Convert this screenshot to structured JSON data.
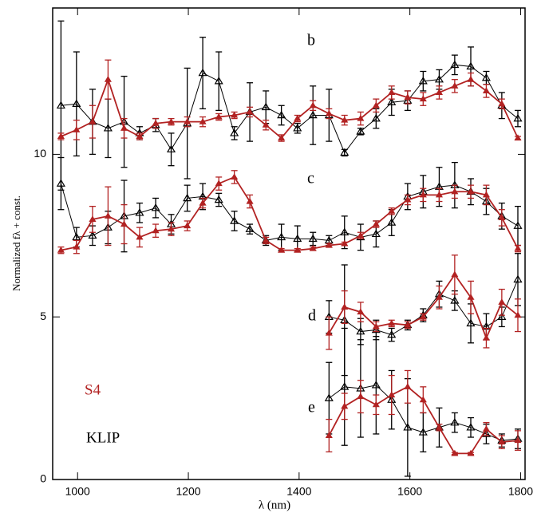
{
  "chart_data": {
    "type": "errorbar-line",
    "xlabel": "λ (nm)",
    "ylabel": "Normalized fλ + const.",
    "xlim": [
      955,
      1808
    ],
    "ylim": [
      0,
      14.5
    ],
    "xticks": [
      1000,
      1200,
      1400,
      1600,
      1800
    ],
    "yticks": [
      0,
      5,
      10
    ],
    "legend": [
      {
        "label": "S4",
        "color": "#b22222"
      },
      {
        "label": "KLIP",
        "color": "#000000"
      }
    ],
    "groups": [
      {
        "label": "b",
        "x": [
          970,
          998,
          1027,
          1055,
          1084,
          1112,
          1141,
          1169,
          1198,
          1226,
          1255,
          1283,
          1311,
          1340,
          1368,
          1397,
          1425,
          1454,
          1482,
          1511,
          1539,
          1567,
          1596,
          1624,
          1653,
          1681,
          1710,
          1738,
          1766,
          1795
        ],
        "series": [
          {
            "color": "#000000",
            "values": [
              11.5,
              11.55,
              11.0,
              10.8,
              11.0,
              10.65,
              10.9,
              10.15,
              10.95,
              12.5,
              12.25,
              10.65,
              11.3,
              11.45,
              11.2,
              10.8,
              11.2,
              11.2,
              10.05,
              10.7,
              11.1,
              11.6,
              11.65,
              12.25,
              12.3,
              12.75,
              12.7,
              12.35,
              11.5,
              11.1
            ],
            "errors": [
              2.6,
              1.6,
              1.0,
              0.9,
              1.4,
              0.2,
              0.2,
              0.5,
              1.7,
              1.1,
              0.9,
              0.2,
              0.9,
              0.5,
              0.3,
              0.15,
              0.9,
              0.8,
              0.1,
              0.1,
              0.3,
              0.4,
              0.3,
              0.3,
              0.3,
              0.3,
              0.6,
              0.2,
              0.4,
              0.25
            ]
          },
          {
            "color": "#b22222",
            "values": [
              10.55,
              10.75,
              11.0,
              12.3,
              10.8,
              10.55,
              10.95,
              11.0,
              11.0,
              11.0,
              11.15,
              11.2,
              11.3,
              10.9,
              10.5,
              11.1,
              11.5,
              11.25,
              11.05,
              11.1,
              11.5,
              11.9,
              11.75,
              11.7,
              11.9,
              12.1,
              12.3,
              11.95,
              11.55,
              10.5
            ],
            "errors": [
              0.1,
              0.3,
              0.5,
              0.6,
              0.3,
              0.1,
              0.15,
              0.1,
              0.15,
              0.15,
              0.1,
              0.1,
              0.15,
              0.15,
              0.1,
              0.1,
              0.15,
              0.15,
              0.15,
              0.2,
              0.2,
              0.2,
              0.2,
              0.2,
              0.2,
              0.2,
              0.2,
              0.2,
              0.15,
              0.05
            ]
          }
        ]
      },
      {
        "label": "c",
        "x": [
          970,
          998,
          1027,
          1055,
          1084,
          1112,
          1141,
          1169,
          1198,
          1226,
          1255,
          1283,
          1311,
          1340,
          1368,
          1397,
          1425,
          1454,
          1482,
          1511,
          1539,
          1567,
          1596,
          1624,
          1653,
          1681,
          1710,
          1738,
          1766,
          1795
        ],
        "series": [
          {
            "color": "#000000",
            "values": [
              9.1,
              7.45,
              7.5,
              7.75,
              8.1,
              8.2,
              8.35,
              7.85,
              8.65,
              8.7,
              8.6,
              7.95,
              7.7,
              7.35,
              7.45,
              7.4,
              7.4,
              7.35,
              7.6,
              7.45,
              7.55,
              7.9,
              8.7,
              8.85,
              9.0,
              9.05,
              8.85,
              8.55,
              8.1,
              7.8
            ],
            "errors": [
              0.8,
              0.3,
              0.3,
              0.5,
              1.1,
              0.3,
              0.3,
              0.3,
              0.4,
              0.4,
              0.2,
              0.3,
              0.15,
              0.15,
              0.4,
              0.4,
              0.2,
              0.15,
              0.5,
              0.4,
              0.4,
              0.4,
              0.4,
              0.5,
              0.6,
              0.7,
              0.4,
              0.4,
              0.4,
              0.6
            ]
          },
          {
            "color": "#b22222",
            "values": [
              7.05,
              7.15,
              8.0,
              8.1,
              7.85,
              7.45,
              7.65,
              7.7,
              7.8,
              8.5,
              9.1,
              9.3,
              8.55,
              7.35,
              7.05,
              7.05,
              7.1,
              7.2,
              7.25,
              7.5,
              7.85,
              8.25,
              8.6,
              8.75,
              8.75,
              8.85,
              8.85,
              8.75,
              8.05,
              7.1
            ],
            "errors": [
              0.1,
              0.2,
              0.4,
              0.9,
              0.6,
              0.3,
              0.2,
              0.2,
              0.15,
              0.15,
              0.2,
              0.2,
              0.2,
              0.1,
              0.05,
              0.05,
              0.05,
              0.05,
              0.05,
              0.1,
              0.1,
              0.1,
              0.15,
              0.2,
              0.2,
              0.2,
              0.2,
              0.3,
              0.25,
              0.1
            ]
          }
        ]
      },
      {
        "label": "d",
        "x": [
          1454,
          1482,
          1511,
          1539,
          1567,
          1596,
          1624,
          1653,
          1681,
          1710,
          1738,
          1766,
          1795
        ],
        "series": [
          {
            "color": "#000000",
            "values": [
              5.0,
              4.9,
              4.55,
              4.6,
              4.45,
              4.75,
              5.05,
              5.7,
              5.5,
              4.8,
              4.7,
              5.0,
              6.15
            ],
            "errors": [
              0.5,
              1.7,
              0.4,
              0.3,
              0.2,
              0.15,
              0.2,
              0.4,
              0.3,
              0.6,
              0.4,
              0.3,
              0.8
            ]
          },
          {
            "color": "#b22222",
            "values": [
              4.5,
              5.3,
              5.15,
              4.7,
              4.8,
              4.75,
              5.0,
              5.6,
              6.3,
              5.6,
              4.35,
              5.45,
              5.05
            ],
            "errors": [
              0.5,
              0.5,
              0.3,
              0.15,
              0.1,
              0.1,
              0.1,
              0.35,
              0.6,
              0.5,
              0.3,
              0.4,
              0.5
            ]
          }
        ]
      },
      {
        "label": "e",
        "x": [
          1454,
          1482,
          1511,
          1539,
          1567,
          1596,
          1624,
          1653,
          1681,
          1710,
          1738,
          1766,
          1795
        ],
        "series": [
          {
            "color": "#000000",
            "values": [
              2.5,
              2.85,
              2.8,
              2.9,
              2.45,
              1.6,
              1.45,
              1.6,
              1.75,
              1.6,
              1.4,
              1.2,
              1.25
            ],
            "errors": [
              1.1,
              1.8,
              1.5,
              1.5,
              0.9,
              1.5,
              0.6,
              0.6,
              0.3,
              0.3,
              0.3,
              0.2,
              0.3
            ]
          },
          {
            "color": "#b22222",
            "values": [
              1.35,
              2.25,
              2.55,
              2.3,
              2.6,
              2.85,
              2.45,
              1.6,
              0.8,
              0.8,
              1.55,
              1.15,
              1.2
            ],
            "errors": [
              0.5,
              0.4,
              0.5,
              0.3,
              0.6,
              0.5,
              0.4,
              0.1,
              0.03,
              0.03,
              0.2,
              0.2,
              0.3
            ]
          }
        ]
      }
    ]
  }
}
